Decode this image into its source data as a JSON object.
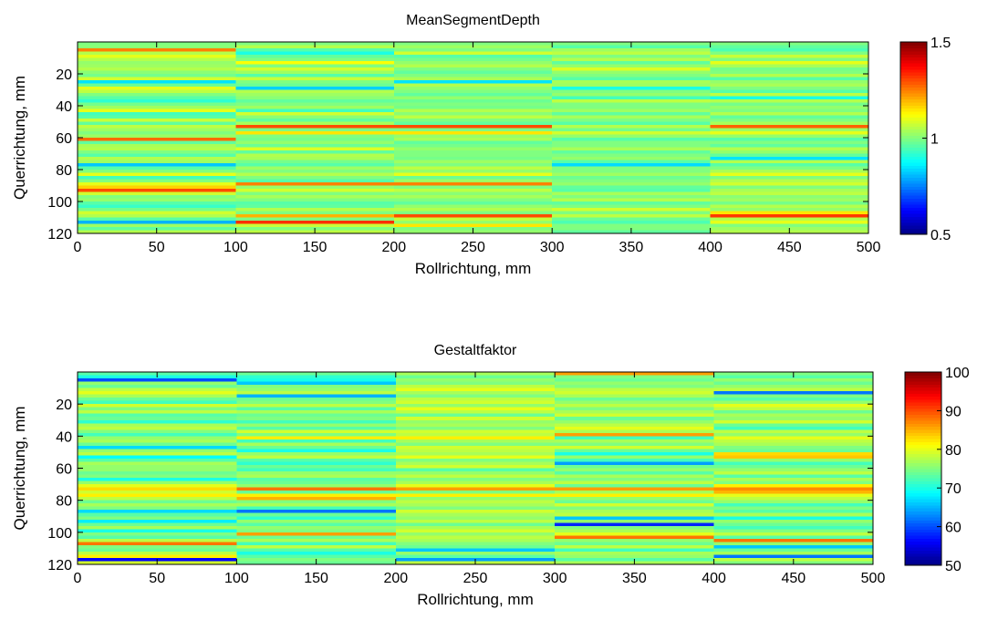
{
  "chart_data": [
    {
      "type": "heatmap",
      "title": "MeanSegmentDepth",
      "xlabel": "Rollrichtung, mm",
      "ylabel": "Querrichtung, mm",
      "xlim": [
        0,
        500
      ],
      "ylim": [
        0,
        120
      ],
      "y_reversed": true,
      "x_ticks": [
        "0",
        "50",
        "100",
        "150",
        "200",
        "250",
        "300",
        "350",
        "400",
        "450",
        "500"
      ],
      "y_ticks": [
        "20",
        "40",
        "60",
        "80",
        "100",
        "120"
      ],
      "colorbar": {
        "min": 0.5,
        "max": 1.5,
        "ticks": [
          "0.5",
          "1",
          "1.5"
        ],
        "colormap": "jet"
      },
      "segments": [
        {
          "x_range": [
            0,
            100
          ],
          "rows": [
            1.0,
            1.01,
            1.25,
            1.05,
            1.1,
            1.05,
            1.02,
            1.03,
            1.05,
            1.01,
            0.99,
            1.08,
            0.85,
            0.98,
            1.1,
            1.06,
            1.0,
            0.96,
            0.92,
            0.99,
            1.03,
            1.1,
            0.94,
            0.96,
            1.07,
            0.97,
            1.06,
            1.03,
            1.0,
            1.03,
            1.27,
            0.97,
            1.04,
            1.05,
            1.0,
            0.96,
            1.05,
            1.03,
            0.82,
            0.96,
            1.0,
            1.1,
            0.94,
            1.0,
            1.1,
            1.17,
            1.3,
            1.08,
            1.0,
            1.02,
            0.96,
            0.93,
            0.99,
            1.08,
            1.05,
            0.96,
            0.8,
            1.03,
            0.97,
            1.05
          ]
        },
        {
          "x_range": [
            100,
            200
          ],
          "rows": [
            1.0,
            1.05,
            0.96,
            0.9,
            0.97,
            1.0,
            1.12,
            1.0,
            1.08,
            1.03,
            0.96,
            1.07,
            1.0,
            0.98,
            0.83,
            1.05,
            1.03,
            1.01,
            0.97,
            1.0,
            1.03,
            0.94,
            1.08,
            1.01,
            0.97,
            1.04,
            1.3,
            1.0,
            1.15,
            1.0,
            0.99,
            1.02,
            0.98,
            1.09,
            0.97,
            1.05,
            1.04,
            0.99,
            0.96,
            1.03,
            1.0,
            1.05,
            1.0,
            0.96,
            1.25,
            1.02,
            1.08,
            1.0,
            1.04,
            1.0,
            0.96,
            0.97,
            1.05,
            1.0,
            1.2,
            1.0,
            1.33,
            1.07,
            1.0,
            1.06
          ]
        },
        {
          "x_range": [
            200,
            300
          ],
          "rows": [
            1.0,
            1.03,
            1.0,
            1.08,
            0.96,
            0.99,
            1.02,
            1.05,
            1.0,
            0.97,
            1.0,
            1.04,
            0.85,
            1.05,
            1.02,
            1.0,
            0.97,
            1.02,
            0.98,
            1.0,
            0.99,
            1.05,
            1.01,
            1.06,
            1.0,
            0.97,
            1.3,
            1.0,
            1.15,
            1.02,
            1.04,
            0.97,
            0.99,
            1.02,
            1.0,
            1.0,
            0.99,
            1.03,
            1.0,
            1.06,
            1.02,
            1.1,
            0.98,
            1.03,
            1.25,
            1.0,
            1.06,
            1.01,
            1.04,
            1.0,
            0.97,
            1.02,
            1.05,
            1.0,
            1.3,
            1.07,
            1.02,
            1.15,
            1.0,
            1.02
          ]
        },
        {
          "x_range": [
            300,
            400
          ],
          "rows": [
            1.0,
            0.96,
            1.03,
            1.06,
            1.0,
            1.05,
            0.97,
            1.02,
            1.09,
            1.02,
            1.0,
            0.96,
            1.04,
            1.03,
            0.9,
            1.0,
            1.02,
            0.94,
            1.06,
            1.0,
            1.0,
            1.03,
            0.97,
            1.04,
            1.0,
            0.96,
            1.05,
            0.99,
            1.08,
            1.02,
            0.96,
            1.0,
            1.0,
            1.04,
            0.97,
            1.0,
            1.02,
            0.96,
            0.84,
            1.0,
            1.0,
            1.03,
            0.98,
            1.0,
            1.02,
            0.97,
            0.96,
            1.04,
            1.0,
            1.05,
            0.97,
            1.0,
            1.08,
            1.0,
            1.06,
            0.98,
            0.95,
            1.0,
            1.0,
            0.97
          ]
        },
        {
          "x_range": [
            400,
            500
          ],
          "rows": [
            1.0,
            0.97,
            0.95,
            1.0,
            1.07,
            1.0,
            1.1,
            1.04,
            0.99,
            1.0,
            1.05,
            0.96,
            1.02,
            1.04,
            1.0,
            0.96,
            1.06,
            0.9,
            1.05,
            0.99,
            1.02,
            1.0,
            1.05,
            0.97,
            1.0,
            1.04,
            1.28,
            1.03,
            1.1,
            1.02,
            0.96,
            1.0,
            0.97,
            1.05,
            1.02,
            0.97,
            0.85,
            1.05,
            0.96,
            1.0,
            1.04,
            1.1,
            1.0,
            1.05,
            1.08,
            1.0,
            1.04,
            1.06,
            1.01,
            1.03,
            0.99,
            1.05,
            1.02,
            1.15,
            1.32,
            1.05,
            1.1,
            1.0,
            1.03,
            1.05
          ]
        }
      ]
    },
    {
      "type": "heatmap",
      "title": "Gestaltfaktor",
      "xlabel": "Rollrichtung, mm",
      "ylabel": "Querrichtung, mm",
      "xlim": [
        0,
        500
      ],
      "ylim": [
        0,
        120
      ],
      "y_reversed": true,
      "x_ticks": [
        "0",
        "50",
        "100",
        "150",
        "200",
        "250",
        "300",
        "350",
        "400",
        "450",
        "500"
      ],
      "y_ticks": [
        "20",
        "40",
        "60",
        "80",
        "100",
        "120"
      ],
      "colorbar": {
        "min": 50,
        "max": 100,
        "ticks": [
          "50",
          "60",
          "70",
          "80",
          "90",
          "100"
        ],
        "colormap": "jet"
      },
      "segments": [
        {
          "x_range": [
            0,
            100
          ],
          "rows": [
            73,
            70,
            60,
            76,
            74,
            78,
            80,
            77,
            74,
            72,
            79,
            75,
            78,
            73,
            74,
            71,
            77,
            78,
            75,
            72,
            76,
            77,
            74,
            67,
            76,
            78,
            69,
            73,
            77,
            76,
            76,
            74,
            75,
            70,
            76,
            80,
            83,
            79,
            82,
            78,
            74,
            77,
            75,
            67,
            73,
            75,
            68,
            74,
            77,
            70,
            75,
            73,
            78,
            88,
            75,
            74,
            78,
            82,
            56,
            79
          ]
        },
        {
          "x_range": [
            100,
            200
          ],
          "rows": [
            74,
            71,
            70,
            66,
            75,
            76,
            78,
            65,
            74,
            75,
            78,
            73,
            77,
            74,
            75,
            72,
            76,
            73,
            79,
            75,
            82,
            72,
            77,
            74,
            70,
            76,
            78,
            73,
            71,
            74,
            72,
            76,
            77,
            73,
            74,
            76,
            88,
            74,
            82,
            85,
            75,
            77,
            72,
            62,
            74,
            71,
            76,
            73,
            76,
            75,
            86,
            74,
            77,
            72,
            78,
            73,
            70,
            73,
            75,
            74
          ]
        },
        {
          "x_range": [
            200,
            300
          ],
          "rows": [
            77,
            74,
            76,
            75,
            78,
            80,
            77,
            75,
            78,
            79,
            76,
            80,
            78,
            74,
            79,
            76,
            77,
            75,
            79,
            78,
            82,
            77,
            75,
            79,
            78,
            77,
            80,
            75,
            77,
            79,
            73,
            76,
            78,
            75,
            77,
            80,
            86,
            75,
            82,
            76,
            78,
            77,
            75,
            79,
            77,
            76,
            78,
            74,
            77,
            79,
            76,
            78,
            77,
            75,
            74,
            66,
            76,
            73,
            64,
            78
          ]
        },
        {
          "x_range": [
            300,
            400
          ],
          "rows": [
            86,
            75,
            74,
            76,
            75,
            78,
            79,
            77,
            74,
            76,
            78,
            75,
            77,
            79,
            74,
            76,
            78,
            80,
            77,
            86,
            72,
            77,
            75,
            79,
            74,
            70,
            76,
            72,
            64,
            74,
            76,
            73,
            77,
            75,
            78,
            74,
            86,
            77,
            82,
            76,
            74,
            79,
            75,
            77,
            78,
            66,
            76,
            58,
            75,
            77,
            80,
            88,
            76,
            74,
            78,
            72,
            77,
            76,
            73,
            77
          ]
        },
        {
          "x_range": [
            400,
            500
          ],
          "rows": [
            75,
            73,
            76,
            74,
            76,
            78,
            62,
            75,
            73,
            76,
            80,
            78,
            74,
            77,
            76,
            79,
            74,
            72,
            78,
            76,
            80,
            78,
            77,
            75,
            74,
            83,
            84,
            76,
            72,
            74,
            76,
            78,
            73,
            77,
            75,
            82,
            87,
            85,
            80,
            78,
            76,
            72,
            75,
            73,
            77,
            70,
            76,
            74,
            72,
            75,
            78,
            73,
            88,
            76,
            66,
            74,
            77,
            62,
            78,
            75
          ]
        }
      ]
    }
  ]
}
